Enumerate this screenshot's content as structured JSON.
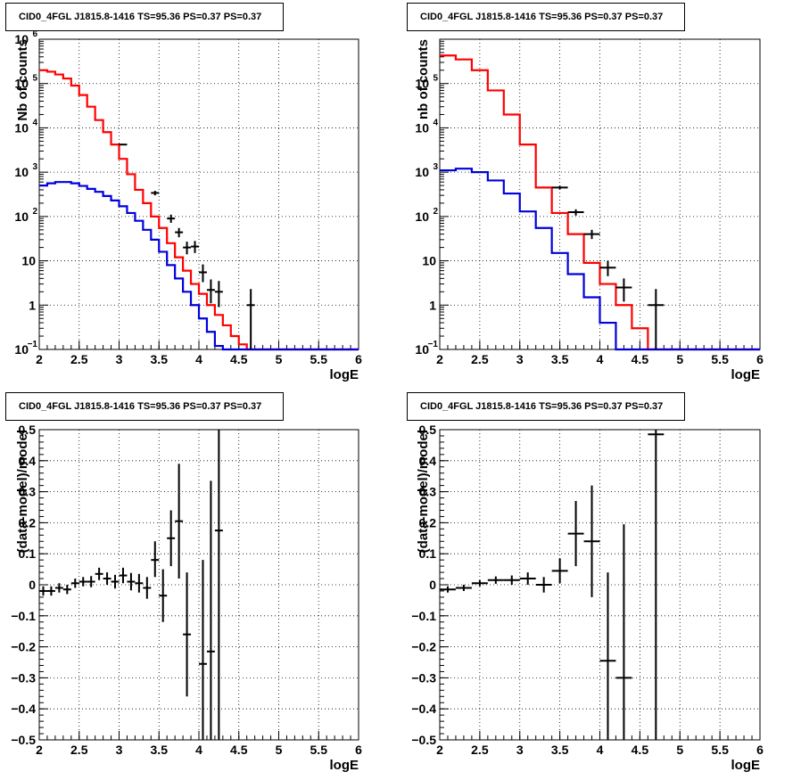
{
  "panel_titles": [
    "CID0_4FGL J1815.8-1416 TS=95.36 PS=0.37 PS=0.37",
    "CID0_4FGL J1815.8-1416 TS=95.36 PS=0.37 PS=0.37",
    "CID0_4FGL J1815.8-1416 TS=95.36 PS=0.37 PS=0.37",
    "CID0_4FGL J1815.8-1416 TS=95.36 PS=0.37 PS=0.37"
  ],
  "colors": {
    "total_model": "#ff0000",
    "source_model": "#0000dd",
    "data": "#000000"
  },
  "chart_data": [
    {
      "type": "line",
      "title": "CID0_4FGL J1815.8-1416 TS=95.36 PS=0.37 PS=0.37",
      "xlabel": "logE",
      "ylabel": "Nb of counts",
      "xlim": [
        2,
        6
      ],
      "ylim": [
        0.1,
        1000000
      ],
      "yscale": "log",
      "grid": true,
      "xticks": [
        "2",
        "2.5",
        "3",
        "3.5",
        "4",
        "4.5",
        "5",
        "5.5",
        "6"
      ],
      "yticks": [
        {
          "value": 0.1,
          "label": "10",
          "exp": "−1"
        },
        {
          "value": 1,
          "label": "1",
          "exp": ""
        },
        {
          "value": 10,
          "label": "10",
          "exp": ""
        },
        {
          "value": 100,
          "label": "10",
          "exp": "2"
        },
        {
          "value": 1000,
          "label": "10",
          "exp": "3"
        },
        {
          "value": 10000,
          "label": "10",
          "exp": "4"
        },
        {
          "value": 100000,
          "label": "10",
          "exp": "5"
        },
        {
          "value": 1000000,
          "label": "10",
          "exp": "6"
        }
      ],
      "bin_width": 0.1,
      "series": [
        {
          "role": "total_model",
          "values": [
            200000,
            185000,
            160000,
            130000,
            90000,
            55000,
            30000,
            15000,
            8000,
            4200,
            2000,
            900,
            400,
            200,
            100,
            55,
            25,
            12,
            6,
            3,
            1.8,
            1,
            0.6,
            0.35,
            0.2,
            0.13,
            0.1,
            0.1,
            0.1,
            0.1,
            0.1,
            0.1,
            0.1,
            0.1,
            0.1,
            0.1,
            0.1,
            0.1,
            0.1,
            0.1
          ]
        },
        {
          "role": "source_model",
          "values": [
            500,
            560,
            600,
            600,
            560,
            490,
            420,
            360,
            290,
            230,
            170,
            120,
            80,
            50,
            30,
            16,
            8,
            4,
            2,
            1,
            0.5,
            0.25,
            0.12,
            0.1,
            0.1,
            0.1,
            0.1,
            0.1,
            0.1,
            0.1,
            0.1,
            0.1,
            0.1,
            0.1,
            0.1,
            0.1,
            0.1,
            0.1,
            0.1,
            0.1
          ]
        }
      ],
      "points": [
        {
          "x": 3.05,
          "y": 4200,
          "ylo": 4050,
          "yhi": 4350
        },
        {
          "x": 3.45,
          "y": 340,
          "ylo": 300,
          "yhi": 380
        },
        {
          "x": 3.65,
          "y": 90,
          "ylo": 72,
          "yhi": 110
        },
        {
          "x": 3.75,
          "y": 44,
          "ylo": 34,
          "yhi": 55
        },
        {
          "x": 3.85,
          "y": 20,
          "ylo": 14,
          "yhi": 27
        },
        {
          "x": 3.95,
          "y": 21,
          "ylo": 15,
          "yhi": 28
        },
        {
          "x": 4.05,
          "y": 5.5,
          "ylo": 3.3,
          "yhi": 8.3
        },
        {
          "x": 4.15,
          "y": 2.2,
          "ylo": 1.1,
          "yhi": 3.8
        },
        {
          "x": 4.25,
          "y": 2,
          "ylo": 0.9,
          "yhi": 3.5
        },
        {
          "x": 4.65,
          "y": 1,
          "ylo": 0.1,
          "yhi": 2.3
        }
      ]
    },
    {
      "type": "line",
      "title": "CID0_4FGL J1815.8-1416 TS=95.36 PS=0.37 PS=0.37",
      "xlabel": "logE",
      "ylabel": "nb of counts",
      "xlim": [
        2,
        6
      ],
      "ylim": [
        0.1,
        1000000
      ],
      "yscale": "log",
      "grid": true,
      "xticks": [
        "2",
        "2.5",
        "3",
        "3.5",
        "4",
        "4.5",
        "5",
        "5.5",
        "6"
      ],
      "yticks": [
        {
          "value": 0.1,
          "label": "10",
          "exp": "−1"
        },
        {
          "value": 1,
          "label": "1",
          "exp": ""
        },
        {
          "value": 10,
          "label": "10",
          "exp": ""
        },
        {
          "value": 100,
          "label": "10",
          "exp": "2"
        },
        {
          "value": 1000,
          "label": "10",
          "exp": "3"
        },
        {
          "value": 10000,
          "label": "10",
          "exp": "4"
        },
        {
          "value": 100000,
          "label": "10",
          "exp": "5"
        }
      ],
      "bin_width": 0.2,
      "series": [
        {
          "role": "total_model",
          "values": [
            430000,
            350000,
            200000,
            70000,
            20000,
            4200,
            450,
            120,
            40,
            9,
            3,
            1,
            0.3,
            0.1,
            0.1,
            0.1,
            0.1,
            0.1,
            0.1,
            0.1
          ]
        },
        {
          "role": "source_model",
          "values": [
            1100,
            1200,
            1000,
            650,
            330,
            130,
            55,
            15,
            5,
            1.5,
            0.4,
            0.1,
            0.1,
            0.1,
            0.1,
            0.1,
            0.1,
            0.1,
            0.1,
            0.1
          ]
        }
      ],
      "points": [
        {
          "x": 3.5,
          "y": 450,
          "ylo": 410,
          "yhi": 490
        },
        {
          "x": 3.7,
          "y": 125,
          "ylo": 105,
          "yhi": 145
        },
        {
          "x": 3.9,
          "y": 40,
          "ylo": 31,
          "yhi": 50
        },
        {
          "x": 4.1,
          "y": 7,
          "ylo": 4.5,
          "yhi": 10
        },
        {
          "x": 4.3,
          "y": 2.5,
          "ylo": 1.2,
          "yhi": 4
        },
        {
          "x": 4.7,
          "y": 1,
          "ylo": 0.1,
          "yhi": 2.3
        }
      ]
    },
    {
      "type": "scatter",
      "title": "CID0_4FGL J1815.8-1416 TS=95.36 PS=0.37 PS=0.37",
      "xlabel": "logE",
      "ylabel": "(data-model)/model",
      "xlim": [
        2,
        6
      ],
      "ylim": [
        -0.5,
        0.5
      ],
      "grid": true,
      "xticks": [
        "2",
        "2.5",
        "3",
        "3.5",
        "4",
        "4.5",
        "5",
        "5.5",
        "6"
      ],
      "yticks": [
        "−0.5",
        "−0.4",
        "−0.3",
        "−0.2",
        "−0.1",
        "0",
        "0.1",
        "0.2",
        "0.3",
        "0.4",
        "0.5"
      ],
      "bin_width": 0.1,
      "points": [
        {
          "x": 2.05,
          "y": -0.02,
          "ylo": -0.035,
          "yhi": -0.005
        },
        {
          "x": 2.15,
          "y": -0.02,
          "ylo": -0.035,
          "yhi": -0.005
        },
        {
          "x": 2.25,
          "y": -0.01,
          "ylo": -0.025,
          "yhi": 0.005
        },
        {
          "x": 2.35,
          "y": -0.015,
          "ylo": -0.03,
          "yhi": 0.0
        },
        {
          "x": 2.45,
          "y": 0.005,
          "ylo": -0.01,
          "yhi": 0.02
        },
        {
          "x": 2.55,
          "y": 0.01,
          "ylo": -0.005,
          "yhi": 0.025
        },
        {
          "x": 2.65,
          "y": 0.01,
          "ylo": -0.008,
          "yhi": 0.028
        },
        {
          "x": 2.75,
          "y": 0.035,
          "ylo": 0.015,
          "yhi": 0.055
        },
        {
          "x": 2.85,
          "y": 0.02,
          "ylo": 0.0,
          "yhi": 0.04
        },
        {
          "x": 2.95,
          "y": 0.01,
          "ylo": -0.012,
          "yhi": 0.032
        },
        {
          "x": 3.05,
          "y": 0.03,
          "ylo": 0.005,
          "yhi": 0.055
        },
        {
          "x": 3.15,
          "y": 0.01,
          "ylo": -0.018,
          "yhi": 0.038
        },
        {
          "x": 3.25,
          "y": 0.005,
          "ylo": -0.025,
          "yhi": 0.035
        },
        {
          "x": 3.35,
          "y": -0.01,
          "ylo": -0.045,
          "yhi": 0.025
        },
        {
          "x": 3.45,
          "y": 0.08,
          "ylo": 0.025,
          "yhi": 0.14
        },
        {
          "x": 3.55,
          "y": -0.035,
          "ylo": -0.12,
          "yhi": 0.05
        },
        {
          "x": 3.65,
          "y": 0.15,
          "ylo": 0.06,
          "yhi": 0.24
        },
        {
          "x": 3.75,
          "y": 0.205,
          "ylo": 0.02,
          "yhi": 0.39
        },
        {
          "x": 3.85,
          "y": -0.16,
          "ylo": -0.36,
          "yhi": 0.04
        },
        {
          "x": 4.05,
          "y": -0.255,
          "ylo": -0.5,
          "yhi": 0.08
        },
        {
          "x": 4.15,
          "y": -0.215,
          "ylo": -0.5,
          "yhi": 0.335
        },
        {
          "x": 4.25,
          "y": 0.175,
          "ylo": -0.5,
          "yhi": 0.5
        }
      ]
    },
    {
      "type": "scatter",
      "title": "CID0_4FGL J1815.8-1416 TS=95.36 PS=0.37 PS=0.37",
      "xlabel": "logE",
      "ylabel": "(data-model)/model",
      "xlim": [
        2,
        6
      ],
      "ylim": [
        -0.5,
        0.5
      ],
      "grid": true,
      "xticks": [
        "2",
        "2.5",
        "3",
        "3.5",
        "4",
        "4.5",
        "5",
        "5.5",
        "6"
      ],
      "yticks": [
        "−0.5",
        "−0.4",
        "−0.3",
        "−0.2",
        "−0.1",
        "0",
        "0.1",
        "0.2",
        "0.3",
        "0.4",
        "0.5"
      ],
      "bin_width": 0.2,
      "points": [
        {
          "x": 2.1,
          "y": -0.015,
          "ylo": -0.025,
          "yhi": -0.005
        },
        {
          "x": 2.3,
          "y": -0.01,
          "ylo": -0.02,
          "yhi": 0.0
        },
        {
          "x": 2.5,
          "y": 0.005,
          "ylo": -0.005,
          "yhi": 0.015
        },
        {
          "x": 2.7,
          "y": 0.015,
          "ylo": 0.003,
          "yhi": 0.027
        },
        {
          "x": 2.9,
          "y": 0.015,
          "ylo": 0.0,
          "yhi": 0.03
        },
        {
          "x": 3.1,
          "y": 0.02,
          "ylo": 0.0,
          "yhi": 0.04
        },
        {
          "x": 3.3,
          "y": 0.0,
          "ylo": -0.025,
          "yhi": 0.025
        },
        {
          "x": 3.5,
          "y": 0.045,
          "ylo": 0.005,
          "yhi": 0.085
        },
        {
          "x": 3.7,
          "y": 0.165,
          "ylo": 0.06,
          "yhi": 0.27
        },
        {
          "x": 3.9,
          "y": 0.14,
          "ylo": -0.04,
          "yhi": 0.32
        },
        {
          "x": 4.1,
          "y": -0.245,
          "ylo": -0.5,
          "yhi": 0.04
        },
        {
          "x": 4.3,
          "y": -0.3,
          "ylo": -0.5,
          "yhi": 0.195
        },
        {
          "x": 4.7,
          "y": 0.485,
          "ylo": -0.5,
          "yhi": 0.5
        }
      ]
    }
  ]
}
